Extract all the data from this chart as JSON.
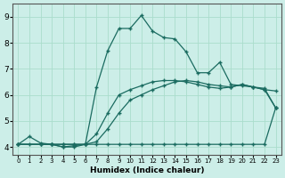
{
  "xlabel": "Humidex (Indice chaleur)",
  "bg_color": "#cceee8",
  "grid_color": "#aaddcc",
  "line_color": "#1a6b60",
  "xlim": [
    -0.5,
    23.5
  ],
  "ylim": [
    3.7,
    9.5
  ],
  "xticks": [
    0,
    1,
    2,
    3,
    4,
    5,
    6,
    7,
    8,
    9,
    10,
    11,
    12,
    13,
    14,
    15,
    16,
    17,
    18,
    19,
    20,
    21,
    22,
    23
  ],
  "yticks": [
    4,
    5,
    6,
    7,
    8,
    9
  ],
  "line1_x": [
    0,
    1,
    2,
    3,
    4,
    5,
    6,
    7,
    8,
    9,
    10,
    11,
    12,
    13,
    14,
    15,
    16,
    17,
    18,
    19,
    20,
    21,
    22,
    23
  ],
  "line1_y": [
    4.1,
    4.1,
    4.1,
    4.1,
    4.1,
    4.1,
    4.1,
    4.1,
    4.1,
    4.1,
    4.1,
    4.1,
    4.1,
    4.1,
    4.1,
    4.1,
    4.1,
    4.1,
    4.1,
    4.1,
    4.1,
    4.1,
    4.1,
    5.5
  ],
  "line2_x": [
    0,
    2,
    3,
    4,
    5,
    6,
    7,
    8,
    9,
    10,
    11,
    12,
    13,
    14,
    15,
    16,
    17,
    18,
    19,
    20,
    21,
    22,
    23
  ],
  "line2_y": [
    4.1,
    4.1,
    4.1,
    4.1,
    4.1,
    4.1,
    4.2,
    4.7,
    5.3,
    5.8,
    6.0,
    6.2,
    6.35,
    6.5,
    6.55,
    6.5,
    6.4,
    6.35,
    6.3,
    6.4,
    6.3,
    6.2,
    6.15
  ],
  "line3_x": [
    0,
    2,
    3,
    4,
    5,
    6,
    7,
    8,
    9,
    10,
    11,
    12,
    13,
    14,
    15,
    16,
    17,
    18,
    19,
    20,
    21,
    22,
    23
  ],
  "line3_y": [
    4.1,
    4.1,
    4.1,
    4.0,
    4.0,
    4.1,
    4.5,
    5.3,
    6.0,
    6.2,
    6.35,
    6.5,
    6.55,
    6.55,
    6.5,
    6.4,
    6.3,
    6.25,
    6.3,
    6.4,
    6.3,
    6.2,
    5.5
  ],
  "line4_x": [
    0,
    1,
    2,
    3,
    4,
    5,
    6,
    7,
    8,
    9,
    10,
    11,
    12,
    13,
    14,
    15,
    16,
    17,
    18,
    19,
    20,
    21,
    22,
    23
  ],
  "line4_y": [
    4.1,
    4.4,
    4.15,
    4.1,
    4.0,
    4.05,
    4.1,
    6.3,
    7.7,
    8.55,
    8.55,
    9.05,
    8.45,
    8.2,
    8.15,
    7.65,
    6.85,
    6.85,
    7.25,
    6.4,
    6.35,
    6.3,
    6.25,
    5.5
  ]
}
